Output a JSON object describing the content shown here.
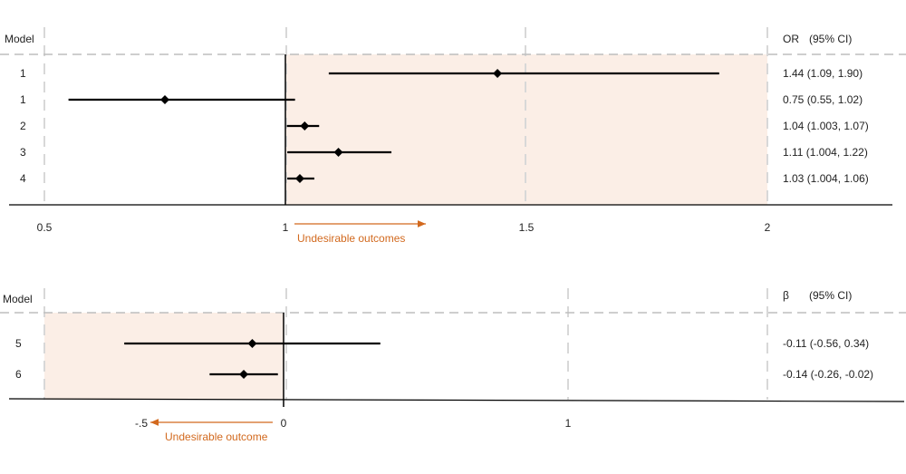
{
  "colors": {
    "shade": "#fbeee6",
    "accent": "#d2691e",
    "line": "#000000",
    "grid": "#d8d8d8"
  },
  "chart_data": [
    {
      "type": "forest",
      "id": "or",
      "headers": {
        "left": "Model",
        "right_a": "OR",
        "right_b": "(95% CI)"
      },
      "reference_value": 1,
      "xlim": [
        0.5,
        2
      ],
      "xticks": [
        {
          "v": 0.5,
          "label": "0.5"
        },
        {
          "v": 1,
          "label": "1"
        },
        {
          "v": 1.5,
          "label": "1.5"
        },
        {
          "v": 2,
          "label": "2"
        }
      ],
      "shaded_range": [
        1,
        2
      ],
      "direction_annotation": {
        "text": "Undesirable outcomes",
        "direction": "right"
      },
      "rows": [
        {
          "model": "1",
          "estimate": 1.44,
          "lower": 1.09,
          "upper": 1.9,
          "ci_text": "1.44 (1.09, 1.90)"
        },
        {
          "model": "1",
          "estimate": 0.75,
          "lower": 0.55,
          "upper": 1.02,
          "ci_text": "0.75 (0.55, 1.02)"
        },
        {
          "model": "2",
          "estimate": 1.04,
          "lower": 1.003,
          "upper": 1.07,
          "ci_text": "1.04 (1.003, 1.07)"
        },
        {
          "model": "3",
          "estimate": 1.11,
          "lower": 1.004,
          "upper": 1.22,
          "ci_text": "1.11 (1.004, 1.22)"
        },
        {
          "model": "4",
          "estimate": 1.03,
          "lower": 1.004,
          "upper": 1.06,
          "ci_text": "1.03 (1.004, 1.06)"
        }
      ]
    },
    {
      "type": "forest",
      "id": "beta",
      "headers": {
        "left": "Model",
        "right_a": "β",
        "right_b": "(95% CI)"
      },
      "reference_value": 0,
      "xlim": [
        -0.5,
        1
      ],
      "xticks": [
        {
          "v": -0.5,
          "label": "-.5"
        },
        {
          "v": 0,
          "label": "0"
        },
        {
          "v": 1,
          "label": "1"
        }
      ],
      "shaded_range": [
        -0.5,
        0
      ],
      "direction_annotation": {
        "text": "Undesirable outcome",
        "direction": "left"
      },
      "rows": [
        {
          "model": "5",
          "estimate": -0.11,
          "lower": -0.56,
          "upper": 0.34,
          "ci_text": "-0.11 (-0.56, 0.34)"
        },
        {
          "model": "6",
          "estimate": -0.14,
          "lower": -0.26,
          "upper": -0.02,
          "ci_text": "-0.14 (-0.26, -0.02)"
        }
      ]
    }
  ]
}
